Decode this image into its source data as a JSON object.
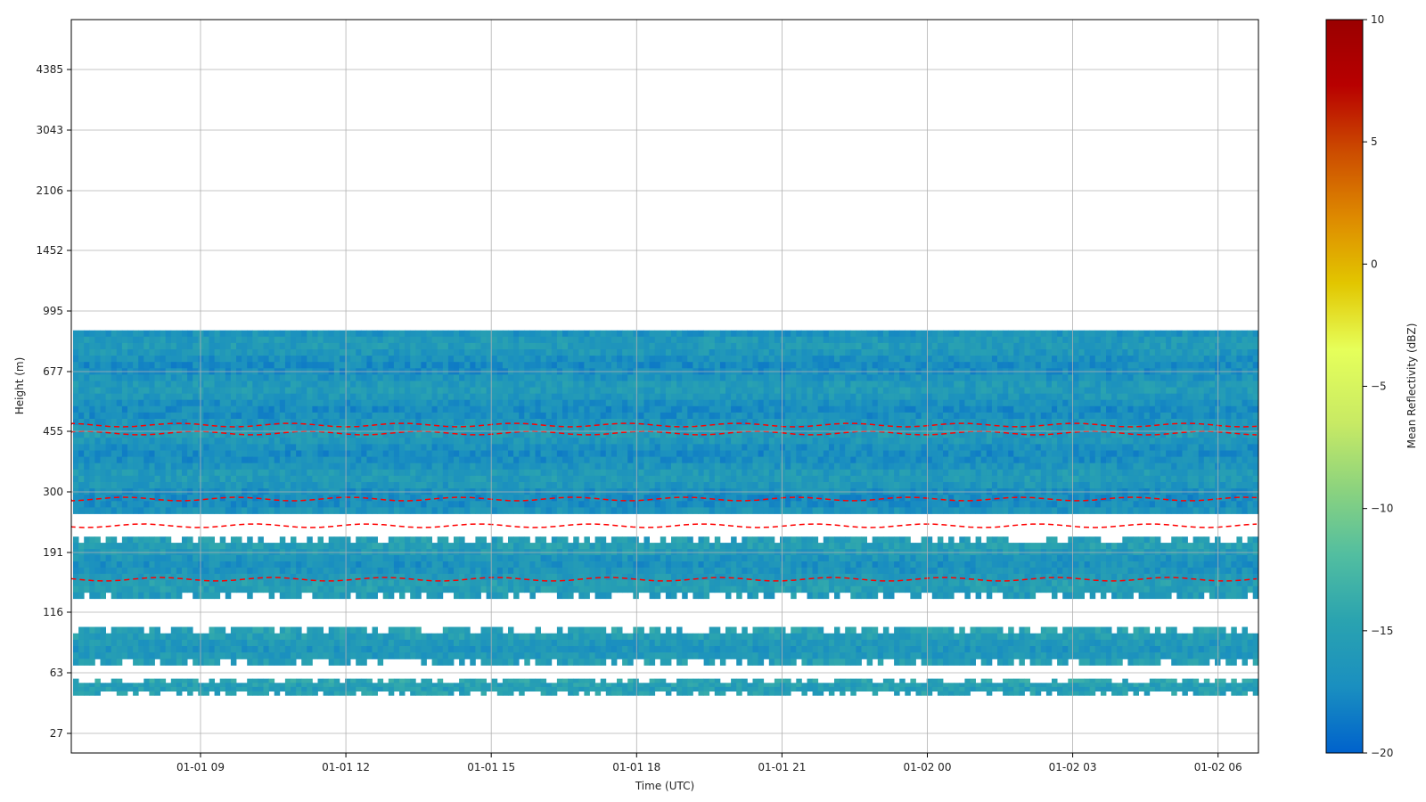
{
  "chart_data": {
    "type": "heatmap",
    "title": "",
    "xlabel": "Time (UTC)",
    "ylabel": "Height (m)",
    "x_range": [
      "01-01 06:20",
      "01-02 06:50"
    ],
    "x_ticks": [
      "01-01 09",
      "01-01 12",
      "01-01 15",
      "01-01 18",
      "01-01 21",
      "01-02 00",
      "01-02 03",
      "01-02 06"
    ],
    "y_ticks": [
      "27",
      "63",
      "116",
      "191",
      "300",
      "455",
      "677",
      "995",
      "1452",
      "2106",
      "3043",
      "4385"
    ],
    "y_scale": "log",
    "grid": true,
    "colorbar": {
      "label": "Mean Reflectivity (dBZ)",
      "min": -20,
      "max": 10,
      "ticks": [
        "10",
        "5",
        "0",
        "−5",
        "−10",
        "−15",
        "−20"
      ],
      "colormap": [
        "#0062cc",
        "#1a8fc0",
        "#2aa3b0",
        "#52bea0",
        "#8cd37e",
        "#c8ea64",
        "#e6ff5a",
        "#e2c600",
        "#de8a00",
        "#cc4c00",
        "#b80000",
        "#9a0000"
      ]
    },
    "echo_layers": [
      {
        "height_range_m": [
          255,
          880
        ],
        "mean_dbz": -16.5
      },
      {
        "height_range_m": [
          130,
          215
        ],
        "mean_dbz": -16
      },
      {
        "height_range_m": [
          68,
          100
        ],
        "mean_dbz": -15.5
      },
      {
        "height_range_m": [
          46,
          58
        ],
        "mean_dbz": -14.5
      }
    ],
    "contour": {
      "color": "#ff0000",
      "style": "dashed"
    }
  }
}
